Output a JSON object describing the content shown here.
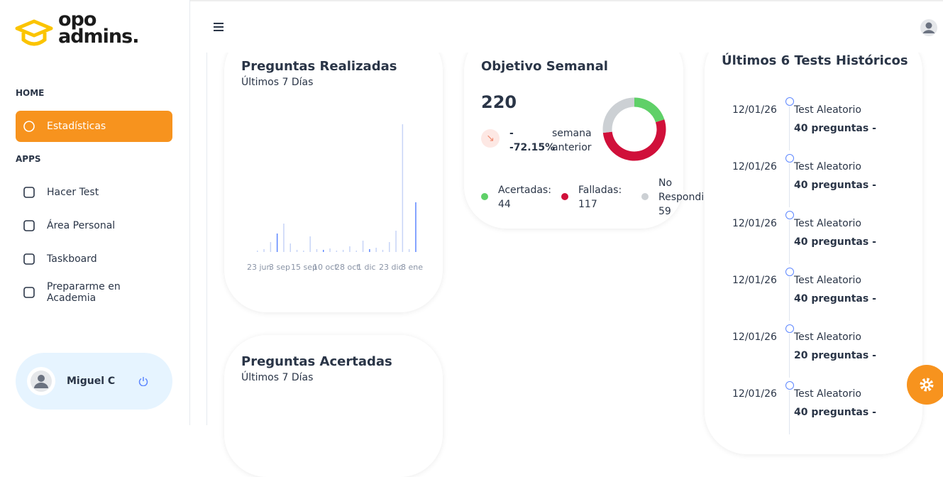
{
  "brand": {
    "top": "opo",
    "bottom": "admins."
  },
  "sidebar": {
    "sections": [
      {
        "title": "HOME",
        "items": [
          "Estadísticas"
        ]
      },
      {
        "title": "APPS",
        "items": [
          "Hacer Test",
          "Área Personal",
          "Taskboard",
          "Prepararme en Academia"
        ]
      }
    ],
    "user": "Miguel C"
  },
  "questions_asked": {
    "title": "Preguntas Realizadas",
    "subtitle": "Últimos 7 Días",
    "labels": [
      "23 jun",
      "3 sep",
      "15 sep",
      "10 oct",
      "28 oct",
      "1 dic",
      "23 dic",
      "8 ene"
    ],
    "bars": [
      2,
      4,
      14,
      26,
      40,
      12,
      3,
      2,
      22,
      4,
      3,
      5,
      2,
      3,
      8,
      2,
      16,
      4,
      6,
      3,
      14,
      30,
      180,
      4,
      70
    ]
  },
  "weekly_goal": {
    "title": "Objetivo Semanal",
    "total": 220,
    "trend_sign": "-",
    "trend": "-72.15%",
    "trend_label": "semana anterior",
    "legend": [
      {
        "name": "Acertadas:",
        "value": 44,
        "color": "#5fd068"
      },
      {
        "name": "Falladas:",
        "value": 117,
        "color": "#d0103a"
      },
      {
        "name": "No Respondidas",
        "value": 59,
        "color": "#ccd0d4"
      }
    ]
  },
  "history": {
    "title": "Últimos 6 Tests Históricos",
    "tests": [
      {
        "date": "12/01/26",
        "name": "Test Aleatorio",
        "detail": "40 preguntas -"
      },
      {
        "date": "12/01/26",
        "name": "Test Aleatorio",
        "detail": "40 preguntas -"
      },
      {
        "date": "12/01/26",
        "name": "Test Aleatorio",
        "detail": "40 preguntas -"
      },
      {
        "date": "12/01/26",
        "name": "Test Aleatorio",
        "detail": "40 preguntas -"
      },
      {
        "date": "12/01/26",
        "name": "Test Aleatorio",
        "detail": "20 preguntas -"
      },
      {
        "date": "12/01/26",
        "name": "Test Aleatorio",
        "detail": "40 preguntas -"
      }
    ]
  },
  "questions_correct": {
    "title": "Preguntas Acertadas",
    "subtitle": "Últimos 7 Días"
  }
}
